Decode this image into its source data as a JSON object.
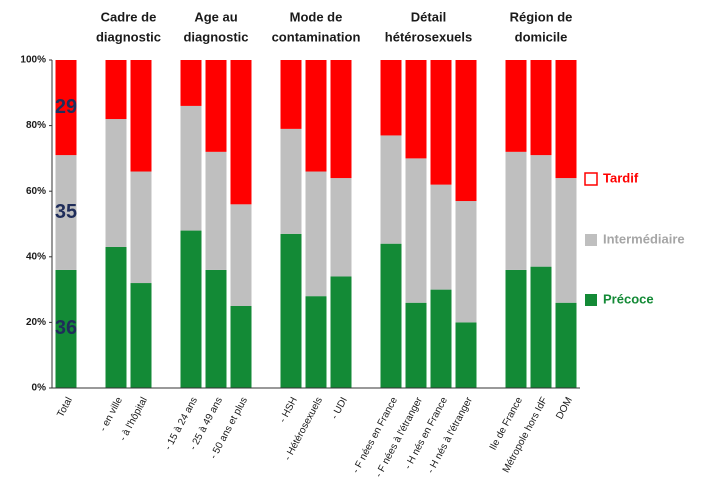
{
  "chart_data": {
    "type": "stacked-bar",
    "group_titles": [
      [
        "Cadre de",
        "diagnostic"
      ],
      [
        "Age au",
        "diagnostic"
      ],
      [
        "Mode de",
        "contamination"
      ],
      [
        "Détail",
        "hétérosexuels"
      ],
      [
        "Région de",
        "domicile"
      ]
    ],
    "categories": [
      "Total",
      null,
      "- en ville",
      "- à l'hôpital",
      null,
      "- 15 à 24 ans",
      "- 25 à 49 ans",
      "- 50 ans et plus",
      null,
      "- HSH",
      "- Hétérosexuels",
      "- UDI",
      null,
      "- F nées en France",
      "- F nées à l'étranger",
      "- H nés en France",
      "- H nés à l'étranger",
      null,
      "Ile de France",
      "Métropole hors IdF",
      "DOM"
    ],
    "series": [
      {
        "name": "Précoce",
        "color": "#138a36",
        "values": [
          36,
          null,
          43,
          32,
          null,
          48,
          36,
          25,
          null,
          47,
          28,
          34,
          null,
          44,
          26,
          30,
          20,
          null,
          36,
          37,
          26
        ]
      },
      {
        "name": "Intermédiaire",
        "color": "#bfbfbf",
        "values": [
          35,
          null,
          39,
          34,
          null,
          38,
          36,
          31,
          null,
          32,
          38,
          30,
          null,
          33,
          44,
          32,
          37,
          null,
          36,
          34,
          38
        ]
      },
      {
        "name": "Tardif",
        "color": "#ff0000",
        "values": [
          29,
          null,
          18,
          34,
          null,
          14,
          28,
          44,
          null,
          21,
          34,
          36,
          null,
          23,
          30,
          38,
          43,
          null,
          28,
          29,
          36
        ]
      }
    ],
    "ylim": [
      0,
      100
    ],
    "yticks": [
      {
        "value": 0,
        "label": "0%"
      },
      {
        "value": 20,
        "label": "20%"
      },
      {
        "value": 40,
        "label": "40%"
      },
      {
        "value": 60,
        "label": "60%"
      },
      {
        "value": 80,
        "label": "80%"
      },
      {
        "value": 100,
        "label": "100%"
      }
    ]
  }
}
